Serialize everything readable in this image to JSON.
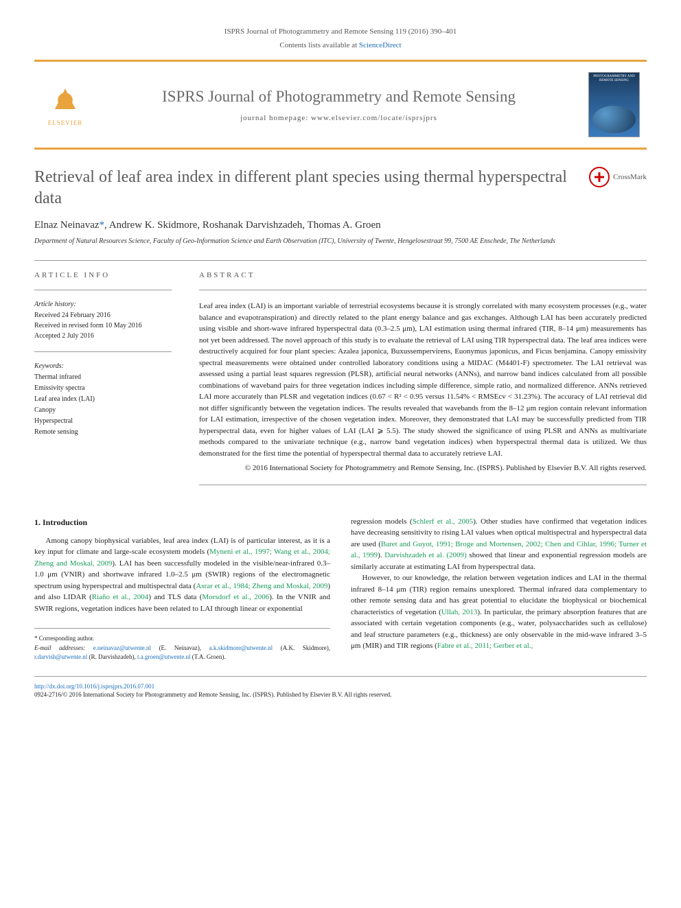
{
  "header": {
    "citation": "ISPRS Journal of Photogrammetry and Remote Sensing 119 (2016) 390–401",
    "contents_line_prefix": "Contents lists available at ",
    "contents_link": "ScienceDirect",
    "journal_title": "ISPRS Journal of Photogrammetry and Remote Sensing",
    "homepage_prefix": "journal homepage: ",
    "homepage_url": "www.elsevier.com/locate/isprsjprs",
    "publisher": "ELSEVIER",
    "cover_caption": "PHOTOGRAMMETRY AND REMOTE SENSING"
  },
  "crossmark": "CrossMark",
  "article": {
    "title": "Retrieval of leaf area index in different plant species using thermal hyperspectral data",
    "authors_html": "Elnaz Neinavaz *, Andrew K. Skidmore, Roshanak Darvishzadeh, Thomas A. Groen",
    "authors": {
      "a1": "Elnaz Neinavaz",
      "corr": "*",
      "a2": ", Andrew K. Skidmore, Roshanak Darvishzadeh, Thomas A. Groen"
    },
    "affiliation": "Department of Natural Resources Science, Faculty of Geo-Information Science and Earth Observation (ITC), University of Twente, Hengelosestraat 99, 7500 AE Enschede, The Netherlands"
  },
  "info": {
    "heading": "ARTICLE INFO",
    "history_label": "Article history:",
    "received": "Received 24 February 2016",
    "revised": "Received in revised form 10 May 2016",
    "accepted": "Accepted 2 July 2016",
    "keywords_label": "Keywords:",
    "keywords": [
      "Thermal infrared",
      "Emissivity spectra",
      "Leaf area index (LAI)",
      "Canopy",
      "Hyperspectral",
      "Remote sensing"
    ]
  },
  "abstract": {
    "heading": "ABSTRACT",
    "text": "Leaf area index (LAI) is an important variable of terrestrial ecosystems because it is strongly correlated with many ecosystem processes (e.g., water balance and evapotranspiration) and directly related to the plant energy balance and gas exchanges. Although LAI has been accurately predicted using visible and short-wave infrared hyperspectral data (0.3–2.5 μm), LAI estimation using thermal infrared (TIR, 8–14 μm) measurements has not yet been addressed. The novel approach of this study is to evaluate the retrieval of LAI using TIR hyperspectral data. The leaf area indices were destructively acquired for four plant species: Azalea japonica, Buxussempervirens, Euonymus japonicus, and Ficus benjamina. Canopy emissivity spectral measurements were obtained under controlled laboratory conditions using a MIDAC (M4401-F) spectrometer. The LAI retrieval was assessed using a partial least squares regression (PLSR), artificial neural networks (ANNs), and narrow band indices calculated from all possible combinations of waveband pairs for three vegetation indices including simple difference, simple ratio, and normalized difference. ANNs retrieved LAI more accurately than PLSR and vegetation indices (0.67 < R² < 0.95 versus 11.54% < RMSEcv < 31.23%). The accuracy of LAI retrieval did not differ significantly between the vegetation indices. The results revealed that wavebands from the 8–12 μm region contain relevant information for LAI estimation, irrespective of the chosen vegetation index. Moreover, they demonstrated that LAI may be successfully predicted from TIR hyperspectral data, even for higher values of LAI (LAI ⩾ 5.5). The study showed the significance of using PLSR and ANNs as multivariate methods compared to the univariate technique (e.g., narrow band vegetation indices) when hyperspectral thermal data is utilized. We thus demonstrated for the first time the potential of hyperspectral thermal data to accurately retrieve LAI.",
    "copyright": "© 2016 International Society for Photogrammetry and Remote Sensing, Inc. (ISPRS). Published by Elsevier B.V. All rights reserved."
  },
  "body": {
    "section1_heading": "1. Introduction",
    "col1_p1_a": "Among canopy biophysical variables, leaf area index (LAI) is of particular interest, as it is a key input for climate and large-scale ecosystem models (",
    "col1_p1_ref1": "Myneni et al., 1997; Wang et al., 2004; Zheng and Moskal, 2009",
    "col1_p1_b": "). LAI has been successfully modeled in the visible/near-infrared 0.3–1.0 μm (VNIR) and shortwave infrared 1.0–2.5 μm (SWIR) regions of the electromagnetic spectrum using hyperspectral and multispectral data (",
    "col1_p1_ref2": "Asrar et al., 1984; Zheng and Moskal, 2009",
    "col1_p1_c": ") and also LIDAR (",
    "col1_p1_ref3": "Riaño et al., 2004",
    "col1_p1_d": ") and TLS data (",
    "col1_p1_ref4": "Morsdorf et al., 2006",
    "col1_p1_e": "). In the VNIR and SWIR regions, vegetation indices have been related to LAI through linear or exponential",
    "col2_p1_a": "regression models (",
    "col2_p1_ref1": "Schlerf et al., 2005",
    "col2_p1_b": "). Other studies have confirmed that vegetation indices have decreasing sensitivity to rising LAI values when optical multispectral and hyperspectral data are used (",
    "col2_p1_ref2": "Baret and Guyot, 1991; Broge and Mortensen, 2002; Chen and Cihlar, 1996; Turner et al., 1999",
    "col2_p1_c": "). ",
    "col2_p1_ref3": "Darvishzadeh et al. (2009)",
    "col2_p1_d": " showed that linear and exponential regression models are similarly accurate at estimating LAI from hyperspectral data.",
    "col2_p2_a": "However, to our knowledge, the relation between vegetation indices and LAI in the thermal infrared 8–14 μm (TIR) region remains unexplored. Thermal infrared data complementary to other remote sensing data and has great potential to elucidate the biophysical or biochemical characteristics of vegetation (",
    "col2_p2_ref1": "Ullah, 2013",
    "col2_p2_b": "). In particular, the primary absorption features that are associated with certain vegetation components (e.g., water, polysaccharides such as cellulose) and leaf structure parameters (e.g., thickness) are only observable in the mid-wave infrared 3–5 μm (MIR) and TIR regions (",
    "col2_p2_ref2": "Fabre et al., 2011; Gerber et al.,"
  },
  "footnotes": {
    "corr_label": "* Corresponding author.",
    "email_label": "E-mail addresses:",
    "emails": [
      {
        "addr": "e.neinavaz@utwente.nl",
        "who": "(E. Neinavaz)"
      },
      {
        "addr": "a.k.skidmore@utwente.nl",
        "who": "(A.K. Skidmore)"
      },
      {
        "addr": "r.darvish@utwente.nl",
        "who": "(R. Darvishzadeh)"
      },
      {
        "addr": "t.a.groen@utwente.nl",
        "who": "(T.A. Groen)"
      }
    ]
  },
  "footer": {
    "doi": "http://dx.doi.org/10.1016/j.isprsjprs.2016.07.001",
    "issn_line": "0924-2716/© 2016 International Society for Photogrammetry and Remote Sensing, Inc. (ISPRS). Published by Elsevier B.V. All rights reserved."
  },
  "colors": {
    "orange_bar": "#e8a33d",
    "link_blue": "#1a6cb8",
    "ref_green": "#1a9a5a",
    "gray_title": "#5a5a5a"
  }
}
